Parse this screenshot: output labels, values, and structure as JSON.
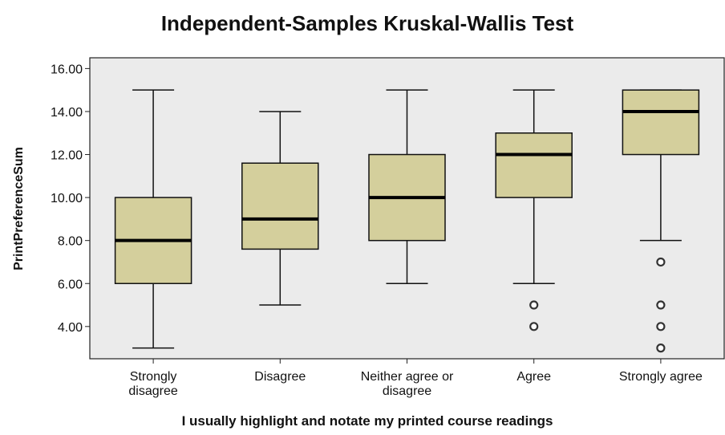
{
  "chart_data": {
    "type": "box",
    "title": "Independent-Samples Kruskal-Wallis Test",
    "x_label": "I usually highlight and notate my printed course readings",
    "y_label": "PrintPreferenceSum",
    "categories": [
      "Strongly\ndisagree",
      "Disagree",
      "Neither agree or\ndisagree",
      "Agree",
      "Strongly agree"
    ],
    "min": [
      3,
      5,
      6,
      6,
      8
    ],
    "q1": [
      6,
      7.6,
      8,
      10,
      12
    ],
    "median": [
      8,
      9,
      10,
      12,
      14
    ],
    "q3": [
      10,
      11.6,
      12,
      13,
      15
    ],
    "max": [
      15,
      14,
      15,
      15,
      15
    ],
    "outliers": [
      [],
      [],
      [],
      [
        5,
        4
      ],
      [
        7,
        5,
        4,
        3
      ]
    ],
    "color": "#d4cf9c",
    "ylim": [
      2.5,
      16.5
    ],
    "yticks": [
      {
        "value": 4,
        "label": "4.00"
      },
      {
        "value": 6,
        "label": "6.00"
      },
      {
        "value": 8,
        "label": "8.00"
      },
      {
        "value": 10,
        "label": "10.00"
      },
      {
        "value": 12,
        "label": "12.00"
      },
      {
        "value": 14,
        "label": "14.00"
      },
      {
        "value": 16,
        "label": "16.00"
      }
    ]
  }
}
